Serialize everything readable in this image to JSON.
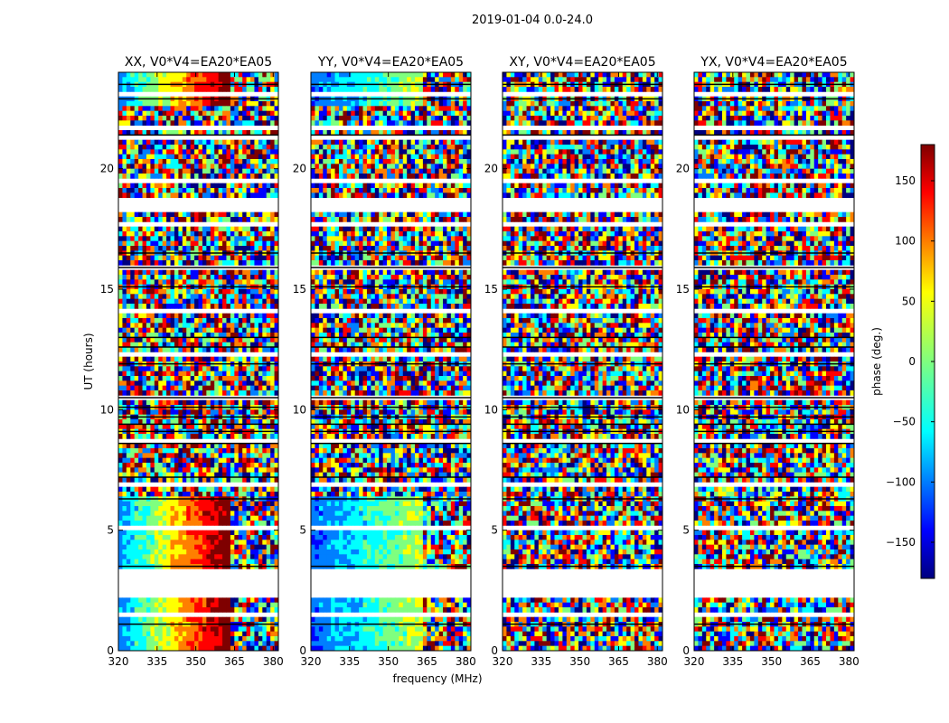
{
  "figure": {
    "suptitle": "2019-01-04 0.0-24.0",
    "xlabel": "frequency (MHz)",
    "ylabel": "UT (hours)"
  },
  "colorbar": {
    "label": "phase (deg.)",
    "range": [
      -180,
      180
    ],
    "ticks": [
      -150,
      -100,
      -50,
      0,
      50,
      100,
      150
    ],
    "tick_labels": [
      "−150",
      "−100",
      "−50",
      "0",
      "50",
      "100",
      "150"
    ],
    "colormap": "jet",
    "colors": [
      "#00007f",
      "#0000ff",
      "#007fff",
      "#00ffff",
      "#7fff7f",
      "#ffff00",
      "#ff7f00",
      "#ff0000",
      "#7f0000"
    ]
  },
  "chart_data": [
    {
      "type": "heatmap",
      "title": "XX, V0*V4=EA20*EA05",
      "xlim": [
        320,
        382
      ],
      "ylim": [
        0,
        24
      ],
      "xticks": [
        320,
        335,
        350,
        365,
        380
      ],
      "yticks": [
        0,
        5,
        10,
        15,
        20
      ],
      "xlabel": "frequency (MHz)",
      "ylabel": "UT (hours)",
      "z": "phase (deg.)"
    },
    {
      "type": "heatmap",
      "title": "YY, V0*V4=EA20*EA05",
      "xlim": [
        320,
        382
      ],
      "ylim": [
        0,
        24
      ],
      "xticks": [
        320,
        335,
        350,
        365,
        380
      ],
      "yticks": [
        0,
        5,
        10,
        15,
        20
      ],
      "xlabel": "frequency (MHz)",
      "z": "phase (deg.)"
    },
    {
      "type": "heatmap",
      "title": "XY, V0*V4=EA20*EA05",
      "xlim": [
        320,
        382
      ],
      "ylim": [
        0,
        24
      ],
      "xticks": [
        320,
        335,
        350,
        365,
        380
      ],
      "yticks": [
        0,
        5,
        10,
        15,
        20
      ],
      "z": "phase (deg.)"
    },
    {
      "type": "heatmap",
      "title": "YX, V0*V4=EA20*EA05",
      "xlim": [
        320,
        382
      ],
      "ylim": [
        0,
        24
      ],
      "xticks": [
        320,
        335,
        350,
        365,
        380
      ],
      "yticks": [
        0,
        5,
        10,
        15,
        20
      ],
      "z": "phase (deg.)"
    }
  ]
}
